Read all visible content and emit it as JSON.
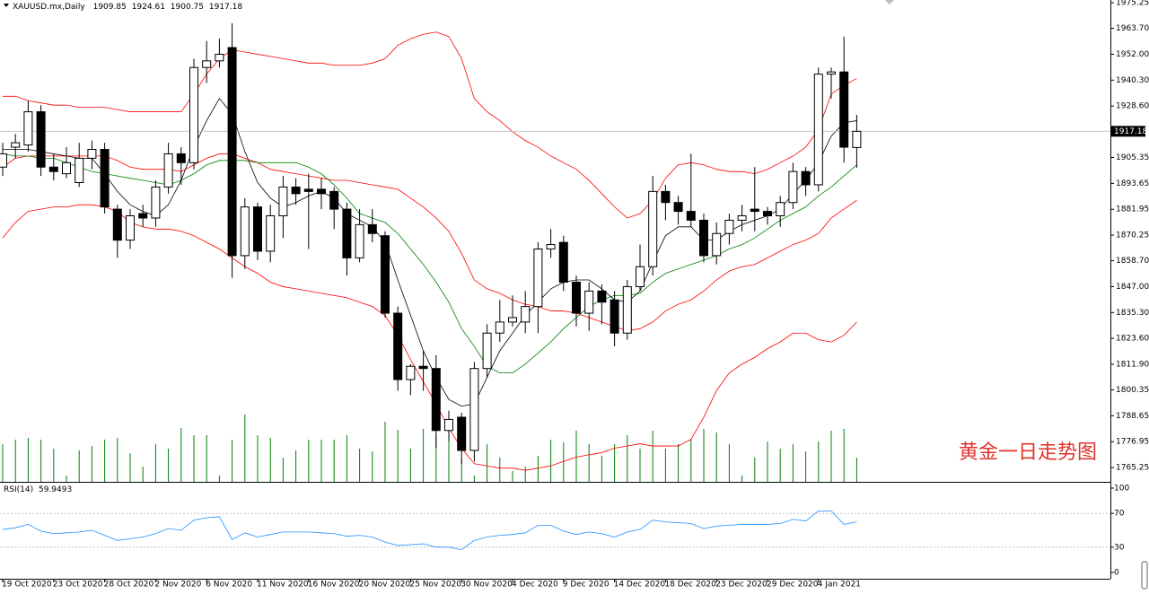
{
  "chart_data": {
    "type": "candlestick",
    "symbol": "XAUUSD.mx,Daily",
    "watermark": "黄金一日走势图",
    "categories": [
      "19 Oct 2020",
      null,
      null,
      null,
      "23 Oct 2020",
      null,
      null,
      null,
      "28 Oct 2020",
      null,
      null,
      null,
      "2 Nov 2020",
      null,
      null,
      null,
      "6 Nov 2020",
      null,
      null,
      null,
      "11 Nov 2020",
      null,
      null,
      null,
      "16 Nov 2020",
      null,
      null,
      null,
      "20 Nov 2020",
      null,
      null,
      null,
      "25 Nov 2020",
      null,
      null,
      null,
      "30 Nov 2020",
      null,
      null,
      null,
      "4 Dec 2020",
      null,
      null,
      null,
      "9 Dec 2020",
      null,
      null,
      null,
      "14 Dec 2020",
      null,
      null,
      null,
      "18 Dec 2020",
      null,
      null,
      null,
      "23 Dec 2020",
      null,
      null,
      null,
      "29 Dec 2020",
      null,
      null,
      null,
      "4 Jan 2021",
      null,
      null,
      null
    ],
    "open": [
      1901,
      1910,
      1911,
      1926,
      1901,
      1898,
      1894,
      1905,
      1909,
      1882,
      1868,
      1880,
      1878,
      1892,
      1907,
      1903,
      1946,
      1949,
      1955,
      1861,
      1883,
      1863,
      1879,
      1892,
      1891,
      1891,
      1890,
      1882,
      1860,
      1875,
      1870,
      1835,
      1805,
      1811,
      1810,
      1782,
      1788,
      1773,
      1810,
      1826,
      1831,
      1831,
      1838,
      1864,
      1867,
      1849,
      1835,
      1845,
      1841,
      1826,
      1847,
      1856,
      1890,
      1885,
      1881,
      1877,
      1861,
      1871,
      1877,
      1882,
      1881,
      1879,
      1885,
      1899,
      1893,
      1943,
      1944,
      1909.85
    ],
    "high": [
      1912,
      1916,
      1931,
      1929,
      1907,
      1910,
      1912,
      1913,
      1912,
      1884,
      1882,
      1884,
      1895,
      1912,
      1910,
      1950,
      1958,
      1959,
      1966,
      1887,
      1885,
      1884,
      1897,
      1896,
      1898,
      1896,
      1892,
      1885,
      1882,
      1882,
      1872,
      1838,
      1812,
      1818,
      1816,
      1791,
      1790,
      1813,
      1830,
      1841,
      1843,
      1845,
      1867,
      1873,
      1870,
      1852,
      1849,
      1848,
      1845,
      1850,
      1866,
      1897,
      1893,
      1888,
      1907,
      1880,
      1876,
      1880,
      1884,
      1901,
      1883,
      1888,
      1903,
      1901,
      1946,
      1946,
      1960,
      1924.61
    ],
    "low": [
      1897,
      1905,
      1908,
      1897,
      1895,
      1896,
      1892,
      1900,
      1880,
      1860,
      1864,
      1874,
      1874,
      1889,
      1893,
      1900,
      1939,
      1946,
      1851,
      1855,
      1859,
      1858,
      1869,
      1884,
      1864,
      1882,
      1873,
      1852,
      1858,
      1867,
      1833,
      1800,
      1798,
      1800,
      1774,
      1777,
      1767,
      1768,
      1806,
      1822,
      1829,
      1826,
      1826,
      1860,
      1845,
      1829,
      1827,
      1830,
      1820,
      1823,
      1845,
      1852,
      1877,
      1875,
      1874,
      1858,
      1857,
      1866,
      1872,
      1872,
      1875,
      1874,
      1882,
      1888,
      1890,
      1932,
      1903,
      1900.75
    ],
    "close": [
      1907,
      1912,
      1926,
      1901,
      1899,
      1903,
      1905,
      1909,
      1883,
      1868,
      1879,
      1878,
      1892,
      1907,
      1903,
      1946,
      1949,
      1952,
      1861,
      1883,
      1863,
      1879,
      1892,
      1889,
      1890,
      1889,
      1882,
      1860,
      1875,
      1871,
      1835,
      1805,
      1811,
      1810,
      1782,
      1787,
      1773,
      1810,
      1826,
      1831,
      1833,
      1838,
      1864,
      1866,
      1849,
      1835,
      1845,
      1840,
      1826,
      1847,
      1856,
      1890,
      1885,
      1881,
      1877,
      1861,
      1871,
      1877,
      1879,
      1881,
      1879,
      1885,
      1899,
      1893,
      1943,
      1944,
      1910,
      1917.18
    ],
    "lines": [
      {
        "color": "#ff0000",
        "values": [
          1933,
          1933,
          1931,
          1930,
          1929,
          1929,
          1928,
          1928,
          1928,
          1927,
          1926,
          1926,
          1926,
          1926,
          1926,
          1934,
          1943,
          1950,
          1954,
          1953,
          1952,
          1951,
          1950,
          1949,
          1948,
          1948,
          1947,
          1947,
          1947,
          1948,
          1950,
          1956,
          1959,
          1961,
          1962,
          1960,
          1950,
          1932,
          1926,
          1922,
          1917,
          1913,
          1910,
          1906,
          1903,
          1900,
          1895,
          1889,
          1883,
          1878,
          1880,
          1886,
          1896,
          1902,
          1903,
          1902,
          1900,
          1899,
          1899,
          1898,
          1900,
          1903,
          1906,
          1910,
          1918,
          1934,
          1938,
          1941
        ]
      },
      {
        "color": "#ff0000",
        "values": [
          1901,
          1905,
          1906,
          1906,
          1906,
          1906,
          1906,
          1906,
          1906,
          1904,
          1901,
          1900,
          1900,
          1900,
          1899,
          1902,
          1905,
          1907,
          1907,
          1905,
          1903,
          1900,
          1899,
          1898,
          1897,
          1896,
          1895,
          1895,
          1894,
          1893,
          1892,
          1891,
          1887,
          1883,
          1878,
          1872,
          1862,
          1850,
          1846,
          1844,
          1841,
          1839,
          1838,
          1836,
          1836,
          1835,
          1833,
          1831,
          1829,
          1827,
          1828,
          1831,
          1836,
          1839,
          1841,
          1845,
          1850,
          1854,
          1856,
          1857,
          1860,
          1863,
          1866,
          1868,
          1871,
          1878,
          1882,
          1886
        ]
      },
      {
        "color": "#ff0000",
        "values": [
          1869,
          1876,
          1881,
          1882,
          1883,
          1883,
          1884,
          1884,
          1883,
          1881,
          1876,
          1874,
          1873,
          1873,
          1872,
          1870,
          1867,
          1864,
          1860,
          1856,
          1853,
          1849,
          1847,
          1846,
          1845,
          1844,
          1843,
          1842,
          1840,
          1838,
          1834,
          1825,
          1814,
          1804,
          1794,
          1783,
          1774,
          1767,
          1766,
          1765,
          1765,
          1764,
          1765,
          1766,
          1768,
          1770,
          1771,
          1772,
          1774,
          1775,
          1776,
          1775,
          1775,
          1775,
          1778,
          1788,
          1800,
          1808,
          1812,
          1815,
          1819,
          1822,
          1826,
          1826,
          1823,
          1822,
          1825,
          1831
        ]
      },
      {
        "color": "#008000",
        "values": [
          1907,
          1906,
          1906,
          1905,
          1905,
          1903,
          1901,
          1899,
          1898,
          1897,
          1896,
          1895,
          1894,
          1893,
          1895,
          1898,
          1902,
          1904,
          1904,
          1904,
          1903,
          1903,
          1903,
          1903,
          1901,
          1898,
          1893,
          1887,
          1880,
          1878,
          1876,
          1871,
          1864,
          1857,
          1849,
          1840,
          1828,
          1820,
          1811,
          1808,
          1808,
          1812,
          1817,
          1822,
          1828,
          1833,
          1838,
          1841,
          1843,
          1843,
          1844,
          1849,
          1853,
          1855,
          1857,
          1859,
          1861,
          1864,
          1866,
          1869,
          1873,
          1877,
          1880,
          1883,
          1888,
          1892,
          1897,
          1902
        ]
      },
      {
        "color": "#000000",
        "values": [
          1909,
          1909,
          1909,
          1908,
          1907,
          1906,
          1905,
          1905,
          1898,
          1890,
          1884,
          1881,
          1879,
          1884,
          1895,
          1910,
          1922,
          1932,
          1925,
          1908,
          1894,
          1887,
          1883,
          1885,
          1888,
          1890,
          1887,
          1880,
          1877,
          1874,
          1867,
          1850,
          1834,
          1818,
          1806,
          1796,
          1793,
          1794,
          1806,
          1818,
          1826,
          1834,
          1840,
          1846,
          1849,
          1850,
          1850,
          1846,
          1841,
          1840,
          1845,
          1858,
          1870,
          1874,
          1874,
          1868,
          1868,
          1872,
          1875,
          1877,
          1879,
          1882,
          1889,
          1895,
          1903,
          1915,
          1921,
          1922
        ]
      }
    ],
    "volume_color": "#008000",
    "volume": [
      42,
      47,
      49,
      47,
      37,
      7,
      35,
      40,
      47,
      49,
      32,
      17,
      42,
      37,
      60,
      52,
      52,
      7,
      47,
      75,
      52,
      49,
      27,
      35,
      47,
      47,
      47,
      52,
      37,
      34,
      67,
      58,
      37,
      59,
      52,
      47,
      25,
      7,
      42,
      27,
      12,
      17,
      29,
      47,
      44,
      57,
      42,
      29,
      42,
      52,
      37,
      57,
      37,
      42,
      47,
      59,
      55,
      42,
      7,
      27,
      45,
      37,
      42,
      34,
      45,
      57,
      59,
      27
    ],
    "ylim": [
      1758.8,
      1976.5
    ],
    "yticks": [
      1975.25,
      {
        "value": 1963.7,
        "label": "1963.70"
      },
      {
        "value": 1952,
        "label": "1952.00"
      },
      {
        "value": 1940.3,
        "label": "1940.30"
      },
      {
        "value": 1928.6,
        "label": "1928.60"
      },
      1905.35,
      1893.65,
      1881.95,
      1870.25,
      {
        "value": 1858.7,
        "label": "1858.70"
      },
      {
        "value": 1847,
        "label": "1847.00"
      },
      {
        "value": 1835.3,
        "label": "1835.30"
      },
      {
        "value": 1823.6,
        "label": "1823.60"
      },
      {
        "value": 1811.9,
        "label": "1811.90"
      },
      1800.35,
      1788.65,
      1776.95,
      1765.25
    ],
    "rsi": {
      "name": "RSI(14)",
      "color": "#1e90ff",
      "values": [
        51,
        53,
        57,
        49,
        46,
        47,
        48,
        50,
        44,
        38,
        40,
        42,
        46,
        52,
        50,
        62,
        65,
        66,
        39,
        47,
        42,
        45,
        48,
        48,
        48,
        47,
        46,
        43,
        44,
        42,
        36,
        32,
        33,
        34,
        30,
        30,
        27,
        38,
        42,
        44,
        45,
        47,
        56,
        56,
        49,
        45,
        48,
        46,
        42,
        48,
        51,
        62,
        60,
        59,
        58,
        52,
        55,
        56,
        57,
        57,
        57,
        58,
        63,
        61,
        73,
        73,
        57,
        59.9493
      ],
      "ylim": [
        0,
        100
      ],
      "yticks": [
        100,
        70,
        30,
        0
      ],
      "levels": [
        70,
        30
      ]
    }
  }
}
